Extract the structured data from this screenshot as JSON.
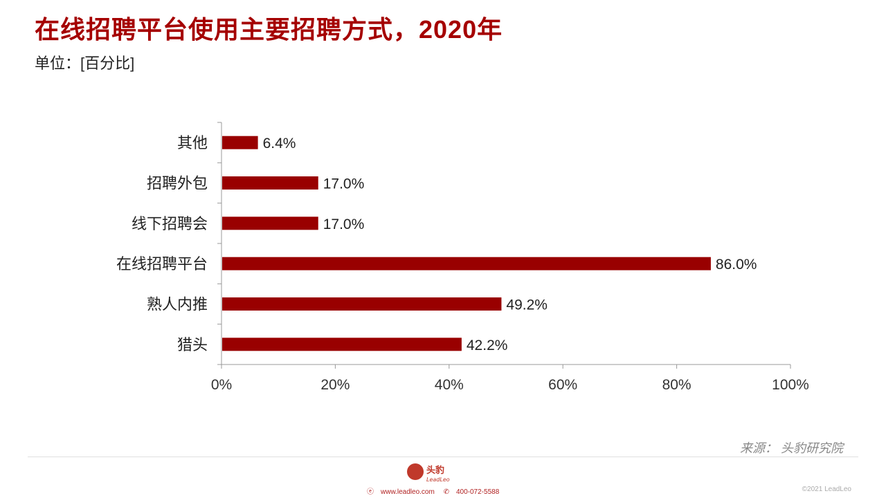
{
  "title": "在线招聘平台使用主要招聘方式，2020年",
  "unit_label": "单位：[百分比]",
  "source": "来源：  头豹研究院",
  "footer": {
    "logo_text": "头豹",
    "logo_sub": "LeadLeo",
    "website": "www.leadleo.com",
    "phone": "400-072-5588",
    "copyright": "©2021 LeadLeo"
  },
  "colors": {
    "bar": "#990000",
    "title": "#A50000"
  },
  "chart_data": {
    "type": "bar",
    "orientation": "horizontal",
    "categories": [
      "其他",
      "招聘外包",
      "线下招聘会",
      "在线招聘平台",
      "熟人内推",
      "猎头"
    ],
    "values": [
      6.4,
      17.0,
      17.0,
      86.0,
      49.2,
      42.2
    ],
    "value_labels": [
      "6.4%",
      "17.0%",
      "17.0%",
      "86.0%",
      "49.2%",
      "42.2%"
    ],
    "xlim": [
      0,
      100
    ],
    "x_ticks": [
      0,
      20,
      40,
      60,
      80,
      100
    ],
    "x_tick_labels": [
      "0%",
      "20%",
      "40%",
      "60%",
      "80%",
      "100%"
    ],
    "grid": false,
    "legend": "none"
  }
}
